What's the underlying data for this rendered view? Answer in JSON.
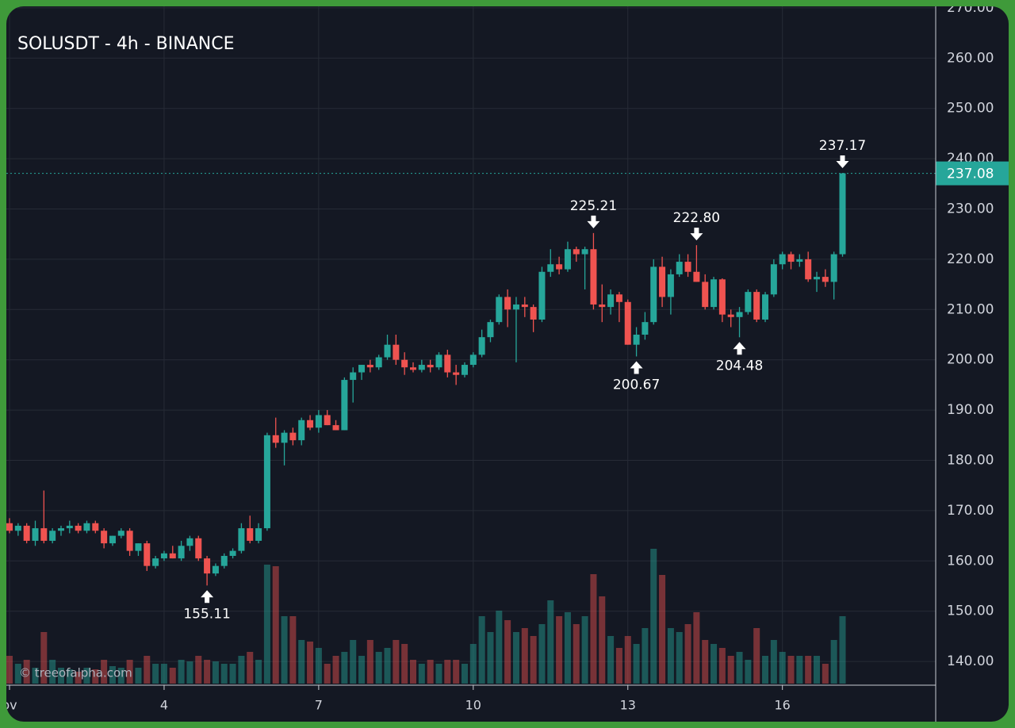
{
  "chart_data": {
    "type": "candlestick",
    "title": "SOLUSDT - 4h - BINANCE",
    "watermark": "© treeofalpha.com",
    "up_color": "#26a69a",
    "down_color": "#ef5350",
    "grid": true,
    "ylim": [
      135.6,
      270.3
    ],
    "yticks": [
      {
        "value": 140,
        "label": "140.00"
      },
      {
        "value": 150,
        "label": "150.00"
      },
      {
        "value": 160,
        "label": "160.00"
      },
      {
        "value": 170,
        "label": "170.00"
      },
      {
        "value": 180,
        "label": "180.00"
      },
      {
        "value": 190,
        "label": "190.00"
      },
      {
        "value": 200,
        "label": "200.00"
      },
      {
        "value": 210,
        "label": "210.00"
      },
      {
        "value": 220,
        "label": "220.00"
      },
      {
        "value": 230,
        "label": "230.00"
      },
      {
        "value": 240,
        "label": "240.00"
      },
      {
        "value": 250,
        "label": "250.00"
      },
      {
        "value": 260,
        "label": "260.00"
      },
      {
        "value": 270,
        "label": "270.00"
      }
    ],
    "xlim": [
      -0.37,
      107.85
    ],
    "xticks": [
      {
        "value": 0,
        "label": "ov"
      },
      {
        "value": 18,
        "label": "4"
      },
      {
        "value": 36,
        "label": "7"
      },
      {
        "value": 54,
        "label": "10"
      },
      {
        "value": 72,
        "label": "13"
      },
      {
        "value": 90,
        "label": "16"
      }
    ],
    "last_price": {
      "value": 237.08,
      "label": "237.08"
    },
    "annotations": [
      {
        "value": 155.11,
        "label": "155.11"
      },
      {
        "value": 225.21,
        "label": "225.21"
      },
      {
        "value": 200.67,
        "label": "200.67"
      },
      {
        "value": 222.8,
        "label": "222.80"
      },
      {
        "value": 204.48,
        "label": "204.48"
      },
      {
        "value": 237.17,
        "label": "237.17"
      }
    ],
    "candles": [
      {
        "o": 167.5,
        "h": 168.5,
        "l": 165.5,
        "c": 166,
        "v": 35
      },
      {
        "o": 166,
        "h": 167.5,
        "l": 165,
        "c": 167,
        "v": 25
      },
      {
        "o": 167,
        "h": 167.5,
        "l": 163.5,
        "c": 164,
        "v": 30
      },
      {
        "o": 164,
        "h": 168,
        "l": 163,
        "c": 166.5,
        "v": 20
      },
      {
        "o": 166.5,
        "h": 174,
        "l": 163.5,
        "c": 164,
        "v": 65
      },
      {
        "o": 164,
        "h": 166.5,
        "l": 163.5,
        "c": 166,
        "v": 30
      },
      {
        "o": 166,
        "h": 167,
        "l": 165,
        "c": 166.5,
        "v": 20
      },
      {
        "o": 166.5,
        "h": 168,
        "l": 165.5,
        "c": 167,
        "v": 18
      },
      {
        "o": 167,
        "h": 167.5,
        "l": 165.5,
        "c": 166,
        "v": 15
      },
      {
        "o": 166,
        "h": 168,
        "l": 165.5,
        "c": 167.5,
        "v": 20
      },
      {
        "o": 167.5,
        "h": 168,
        "l": 165.5,
        "c": 166,
        "v": 18
      },
      {
        "o": 166,
        "h": 166.5,
        "l": 162.5,
        "c": 163.5,
        "v": 30
      },
      {
        "o": 163.5,
        "h": 165,
        "l": 163,
        "c": 165,
        "v": 22
      },
      {
        "o": 165,
        "h": 166.5,
        "l": 164.5,
        "c": 166,
        "v": 20
      },
      {
        "o": 166,
        "h": 166.5,
        "l": 161,
        "c": 162,
        "v": 30
      },
      {
        "o": 162,
        "h": 163.5,
        "l": 161,
        "c": 163.5,
        "v": 20
      },
      {
        "o": 163.5,
        "h": 164,
        "l": 158,
        "c": 159,
        "v": 35
      },
      {
        "o": 159,
        "h": 161,
        "l": 158.5,
        "c": 160.5,
        "v": 25
      },
      {
        "o": 160.5,
        "h": 162,
        "l": 160,
        "c": 161.5,
        "v": 25
      },
      {
        "o": 161.5,
        "h": 163,
        "l": 160.5,
        "c": 160.5,
        "v": 20
      },
      {
        "o": 160.5,
        "h": 164,
        "l": 160,
        "c": 163,
        "v": 30
      },
      {
        "o": 163,
        "h": 165,
        "l": 162,
        "c": 164.5,
        "v": 28
      },
      {
        "o": 164.5,
        "h": 165,
        "l": 160,
        "c": 160.5,
        "v": 35
      },
      {
        "o": 160.5,
        "h": 161,
        "l": 155.11,
        "c": 157.5,
        "v": 30
      },
      {
        "o": 157.5,
        "h": 159.5,
        "l": 157,
        "c": 159,
        "v": 28
      },
      {
        "o": 159,
        "h": 161.5,
        "l": 158.5,
        "c": 161,
        "v": 25
      },
      {
        "o": 161,
        "h": 162.5,
        "l": 160.5,
        "c": 162,
        "v": 25
      },
      {
        "o": 162,
        "h": 167.5,
        "l": 161.5,
        "c": 166.5,
        "v": 35
      },
      {
        "o": 166.5,
        "h": 169,
        "l": 163.5,
        "c": 164,
        "v": 40
      },
      {
        "o": 164,
        "h": 167.5,
        "l": 163.5,
        "c": 166.5,
        "v": 30
      },
      {
        "o": 166.5,
        "h": 185.5,
        "l": 166,
        "c": 185,
        "v": 150
      },
      {
        "o": 185,
        "h": 188.5,
        "l": 182.5,
        "c": 183.5,
        "v": 148
      },
      {
        "o": 183.5,
        "h": 186,
        "l": 179,
        "c": 185.5,
        "v": 85
      },
      {
        "o": 185.5,
        "h": 186.5,
        "l": 183,
        "c": 184,
        "v": 85
      },
      {
        "o": 184,
        "h": 188.5,
        "l": 183,
        "c": 188,
        "v": 55
      },
      {
        "o": 188,
        "h": 189,
        "l": 186,
        "c": 186.5,
        "v": 53
      },
      {
        "o": 186.5,
        "h": 190,
        "l": 185.5,
        "c": 189,
        "v": 45
      },
      {
        "o": 189,
        "h": 190,
        "l": 187,
        "c": 187,
        "v": 25
      },
      {
        "o": 187,
        "h": 188,
        "l": 186,
        "c": 186,
        "v": 35
      },
      {
        "o": 186,
        "h": 196.5,
        "l": 186,
        "c": 196,
        "v": 40
      },
      {
        "o": 196,
        "h": 198.5,
        "l": 191.5,
        "c": 197.5,
        "v": 55
      },
      {
        "o": 197.5,
        "h": 199,
        "l": 196,
        "c": 199,
        "v": 35
      },
      {
        "o": 199,
        "h": 200,
        "l": 197.5,
        "c": 198.5,
        "v": 55
      },
      {
        "o": 198.5,
        "h": 201,
        "l": 198,
        "c": 200.5,
        "v": 40
      },
      {
        "o": 200.5,
        "h": 205,
        "l": 200,
        "c": 203,
        "v": 45
      },
      {
        "o": 203,
        "h": 205,
        "l": 199,
        "c": 200,
        "v": 55
      },
      {
        "o": 200,
        "h": 201.5,
        "l": 197,
        "c": 198.5,
        "v": 50
      },
      {
        "o": 198.5,
        "h": 199.5,
        "l": 197.5,
        "c": 198,
        "v": 30
      },
      {
        "o": 198,
        "h": 200,
        "l": 197.5,
        "c": 199,
        "v": 25
      },
      {
        "o": 199,
        "h": 200,
        "l": 197.5,
        "c": 198.5,
        "v": 30
      },
      {
        "o": 198.5,
        "h": 201.5,
        "l": 198,
        "c": 201,
        "v": 25
      },
      {
        "o": 201,
        "h": 202,
        "l": 196.5,
        "c": 197.5,
        "v": 30
      },
      {
        "o": 197.5,
        "h": 199,
        "l": 195,
        "c": 197,
        "v": 30
      },
      {
        "o": 197,
        "h": 199.5,
        "l": 196.5,
        "c": 199,
        "v": 25
      },
      {
        "o": 199,
        "h": 201.5,
        "l": 198.5,
        "c": 201,
        "v": 50
      },
      {
        "o": 201,
        "h": 206,
        "l": 200.5,
        "c": 204.5,
        "v": 85
      },
      {
        "o": 204.5,
        "h": 208,
        "l": 203.5,
        "c": 207.5,
        "v": 65
      },
      {
        "o": 207.5,
        "h": 213,
        "l": 207,
        "c": 212.5,
        "v": 92
      },
      {
        "o": 212.5,
        "h": 214,
        "l": 206.5,
        "c": 210,
        "v": 80
      },
      {
        "o": 210,
        "h": 212.5,
        "l": 199.5,
        "c": 211,
        "v": 65
      },
      {
        "o": 211,
        "h": 212.5,
        "l": 208.5,
        "c": 210.5,
        "v": 70
      },
      {
        "o": 210.5,
        "h": 211,
        "l": 205.5,
        "c": 208,
        "v": 60
      },
      {
        "o": 208,
        "h": 218.5,
        "l": 207.5,
        "c": 217.5,
        "v": 75
      },
      {
        "o": 217.5,
        "h": 222,
        "l": 216.5,
        "c": 219,
        "v": 105
      },
      {
        "o": 219,
        "h": 220.5,
        "l": 217,
        "c": 218,
        "v": 85
      },
      {
        "o": 218,
        "h": 223.5,
        "l": 217.5,
        "c": 222,
        "v": 90
      },
      {
        "o": 222,
        "h": 222.5,
        "l": 219.5,
        "c": 221,
        "v": 75
      },
      {
        "o": 221,
        "h": 222.5,
        "l": 214,
        "c": 222,
        "v": 85
      },
      {
        "o": 222,
        "h": 225.21,
        "l": 210,
        "c": 211,
        "v": 138
      },
      {
        "o": 211,
        "h": 215,
        "l": 207.5,
        "c": 210.5,
        "v": 110
      },
      {
        "o": 210.5,
        "h": 214,
        "l": 209,
        "c": 213,
        "v": 60
      },
      {
        "o": 213,
        "h": 213.5,
        "l": 207.5,
        "c": 211.5,
        "v": 45
      },
      {
        "o": 211.5,
        "h": 212,
        "l": 203,
        "c": 203,
        "v": 60
      },
      {
        "o": 203,
        "h": 206.5,
        "l": 200.67,
        "c": 205,
        "v": 50
      },
      {
        "o": 205,
        "h": 209.5,
        "l": 204,
        "c": 207.5,
        "v": 70
      },
      {
        "o": 207.5,
        "h": 220,
        "l": 207,
        "c": 218.5,
        "v": 170
      },
      {
        "o": 218.5,
        "h": 220.5,
        "l": 210.5,
        "c": 212.5,
        "v": 137
      },
      {
        "o": 212.5,
        "h": 218,
        "l": 209,
        "c": 217,
        "v": 70
      },
      {
        "o": 217,
        "h": 221,
        "l": 216.5,
        "c": 219.5,
        "v": 65
      },
      {
        "o": 219.5,
        "h": 221,
        "l": 216.5,
        "c": 217.5,
        "v": 75
      },
      {
        "o": 217.5,
        "h": 222.8,
        "l": 215.5,
        "c": 215.5,
        "v": 90
      },
      {
        "o": 215.5,
        "h": 217,
        "l": 210,
        "c": 210.5,
        "v": 55
      },
      {
        "o": 210.5,
        "h": 216.5,
        "l": 210,
        "c": 216,
        "v": 50
      },
      {
        "o": 216,
        "h": 216.2,
        "l": 207.5,
        "c": 209,
        "v": 45
      },
      {
        "o": 209,
        "h": 210,
        "l": 206.5,
        "c": 208.5,
        "v": 35
      },
      {
        "o": 208.5,
        "h": 210.5,
        "l": 204.48,
        "c": 209.5,
        "v": 40
      },
      {
        "o": 209.5,
        "h": 214,
        "l": 209,
        "c": 213.5,
        "v": 30
      },
      {
        "o": 213.5,
        "h": 214,
        "l": 207.5,
        "c": 208,
        "v": 70
      },
      {
        "o": 208,
        "h": 213.5,
        "l": 207.5,
        "c": 213,
        "v": 35
      },
      {
        "o": 213,
        "h": 220,
        "l": 212.5,
        "c": 219,
        "v": 55
      },
      {
        "o": 219,
        "h": 221.5,
        "l": 218,
        "c": 221,
        "v": 40
      },
      {
        "o": 221,
        "h": 221.5,
        "l": 218,
        "c": 219.5,
        "v": 35
      },
      {
        "o": 219.5,
        "h": 221,
        "l": 218.5,
        "c": 220,
        "v": 35
      },
      {
        "o": 220,
        "h": 221.5,
        "l": 215.5,
        "c": 216,
        "v": 35
      },
      {
        "o": 216,
        "h": 217.5,
        "l": 213.5,
        "c": 216.5,
        "v": 35
      },
      {
        "o": 216.5,
        "h": 218,
        "l": 214.5,
        "c": 215.5,
        "v": 25
      },
      {
        "o": 215.5,
        "h": 221.5,
        "l": 212,
        "c": 221,
        "v": 55
      },
      {
        "o": 221,
        "h": 237.17,
        "l": 220.5,
        "c": 237.08,
        "v": 85
      }
    ]
  }
}
